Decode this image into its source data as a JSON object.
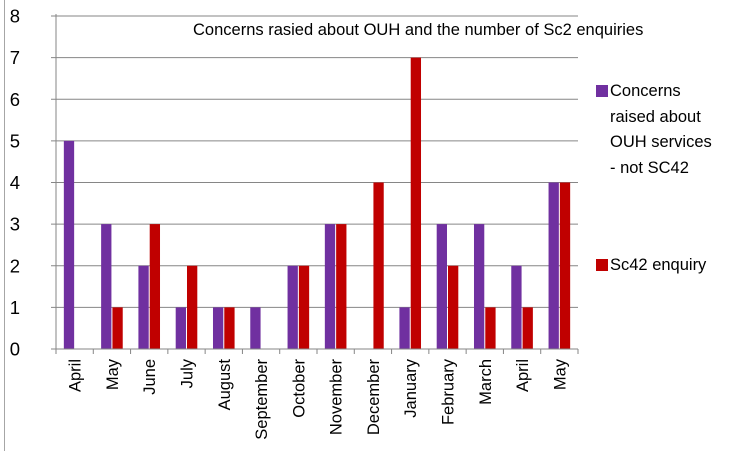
{
  "chart_data": {
    "type": "bar",
    "title": "Concerns rasied about OUH and the number of Sc2 enquiries",
    "xlabel": "",
    "ylabel": "",
    "ylim": [
      0,
      8
    ],
    "yticks": [
      0,
      1,
      2,
      3,
      4,
      5,
      6,
      7,
      8
    ],
    "grid": true,
    "legend_position": "right",
    "categories": [
      "April",
      "May",
      "June",
      "July",
      "August",
      "September",
      "October",
      "November",
      "December",
      "January",
      "February",
      "March",
      "April",
      "May"
    ],
    "series": [
      {
        "name": "Concerns raised about OUH services - not SC42",
        "color": "#7030a0",
        "values": [
          5,
          3,
          2,
          1,
          1,
          1,
          2,
          3,
          0,
          1,
          3,
          3,
          2,
          4
        ]
      },
      {
        "name": "Sc42 enquiry",
        "color": "#c00000",
        "values": [
          0,
          1,
          3,
          2,
          1,
          0,
          2,
          3,
          4,
          7,
          2,
          1,
          1,
          4
        ]
      }
    ]
  }
}
